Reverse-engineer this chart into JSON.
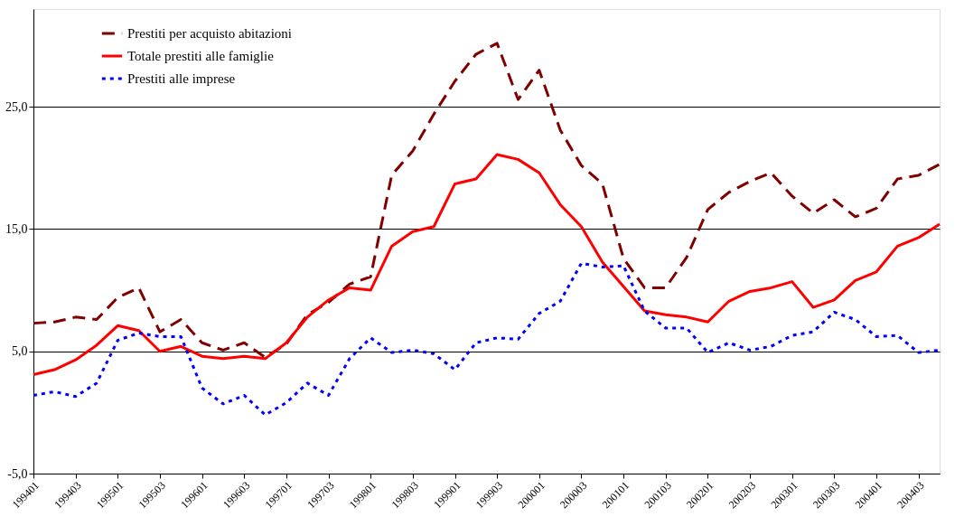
{
  "chart_data": {
    "type": "line",
    "categories": [
      "199401",
      null,
      "199403",
      null,
      "199501",
      null,
      "199503",
      null,
      "199601",
      null,
      "199603",
      null,
      "199701",
      null,
      "199703",
      null,
      "199801",
      null,
      "199803",
      null,
      "199901",
      null,
      "199903",
      null,
      "200001",
      null,
      "200003",
      null,
      "200101",
      null,
      "200103",
      null,
      "200201",
      null,
      "200203",
      null,
      "200301",
      null,
      "200303",
      null,
      "200401",
      null,
      "200403",
      null
    ],
    "series": [
      {
        "name": "Prestiti per acquisto abitazioni",
        "color": "#800000",
        "line_style": "dashed",
        "values": [
          7.3,
          7.4,
          7.8,
          7.6,
          9.4,
          10.2,
          6.6,
          7.6,
          5.7,
          5.1,
          5.7,
          4.5,
          5.6,
          8.0,
          9.0,
          10.5,
          11.1,
          19.4,
          21.4,
          24.4,
          27.1,
          29.3,
          30.2,
          25.6,
          28.0,
          23.1,
          20.2,
          18.7,
          12.6,
          10.2,
          10.2,
          12.7,
          16.6,
          18.0,
          18.9,
          19.6,
          17.7,
          16.3,
          17.4,
          16.0,
          16.7,
          19.1,
          19.4,
          20.3
        ]
      },
      {
        "name": "Totale prestiti alle famiglie",
        "color": "#ff0000",
        "line_style": "solid",
        "values": [
          3.1,
          3.5,
          4.3,
          5.5,
          7.1,
          6.7,
          5.0,
          5.4,
          4.6,
          4.4,
          4.6,
          4.4,
          5.7,
          7.8,
          9.2,
          10.2,
          10.0,
          13.6,
          14.8,
          15.2,
          18.7,
          19.1,
          21.1,
          20.7,
          19.6,
          17.0,
          15.2,
          12.3,
          10.3,
          8.3,
          8.0,
          7.8,
          7.4,
          9.1,
          9.9,
          10.2,
          10.7,
          8.6,
          9.2,
          10.8,
          11.5,
          13.6,
          14.3,
          15.4
        ]
      },
      {
        "name": "Prestiti alle imprese",
        "color": "#0000ff",
        "line_style": "dotted",
        "values": [
          1.4,
          1.7,
          1.3,
          2.4,
          5.9,
          6.5,
          6.2,
          6.2,
          2.0,
          0.7,
          1.4,
          -0.2,
          0.8,
          2.4,
          1.4,
          4.4,
          6.1,
          4.9,
          5.1,
          4.8,
          3.5,
          5.7,
          6.1,
          6.0,
          8.1,
          9.1,
          12.2,
          11.9,
          12.0,
          8.3,
          6.9,
          6.9,
          4.9,
          5.7,
          5.1,
          5.4,
          6.3,
          6.6,
          8.2,
          7.6,
          6.2,
          6.3,
          4.9,
          5.1
        ]
      }
    ],
    "ylim": [
      -5,
      33
    ],
    "yticks": [
      {
        "value": -5,
        "label": "-5,0"
      },
      {
        "value": 5,
        "label": "5,0"
      },
      {
        "value": 15,
        "label": "15,0"
      },
      {
        "value": 25,
        "label": "25,0"
      }
    ],
    "grid": "y",
    "legend": "top left",
    "marker": "none"
  }
}
